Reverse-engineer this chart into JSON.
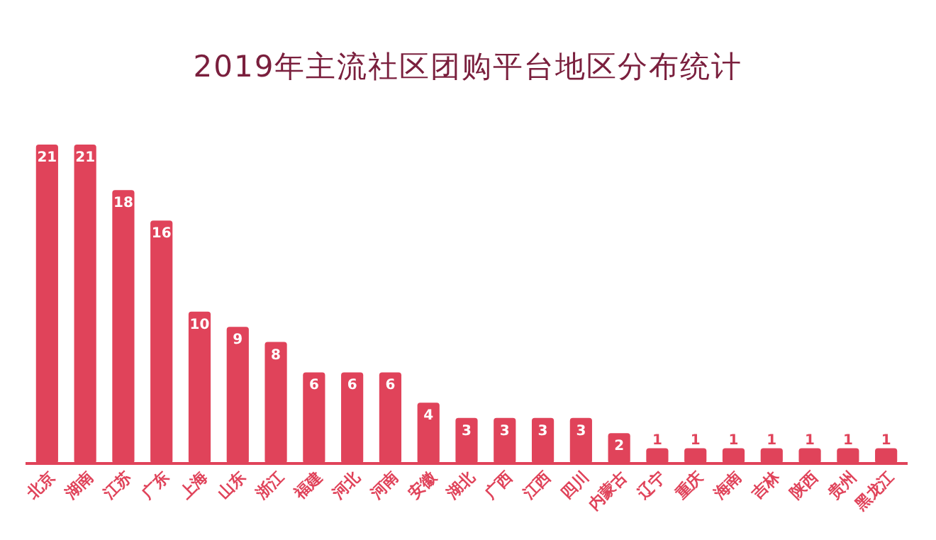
{
  "chart_data": {
    "type": "bar",
    "title": "2019年主流社区团购平台地区分布统计",
    "categories": [
      "北京",
      "湖南",
      "江苏",
      "广东",
      "上海",
      "山东",
      "浙江",
      "福建",
      "河北",
      "河南",
      "安徽",
      "湖北",
      "广西",
      "江西",
      "四川",
      "内蒙古",
      "辽宁",
      "重庆",
      "海南",
      "吉林",
      "陕西",
      "贵州",
      "黑龙江"
    ],
    "values": [
      21,
      21,
      18,
      16,
      10,
      9,
      8,
      6,
      6,
      6,
      4,
      3,
      3,
      3,
      3,
      2,
      1,
      1,
      1,
      1,
      1,
      1,
      1
    ],
    "color": "#e0435a",
    "data_labels": true
  }
}
